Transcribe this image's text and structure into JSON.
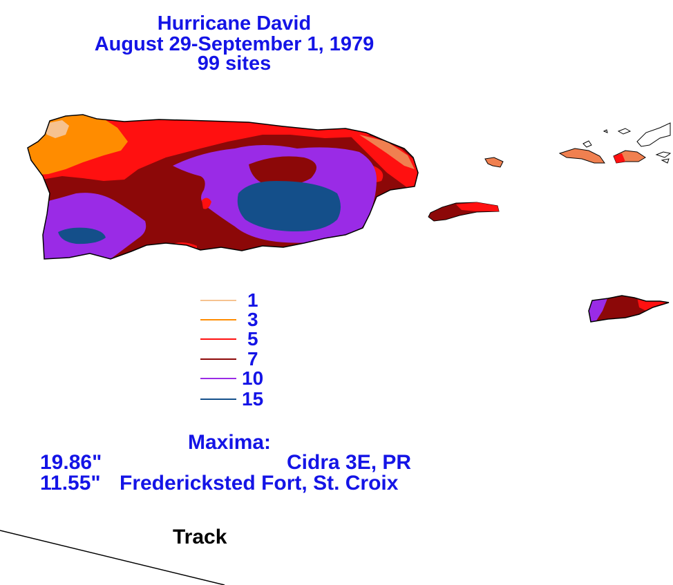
{
  "title": {
    "line1": "Hurricane David",
    "line2": "August 29-September 1, 1979",
    "line3": "99 sites"
  },
  "legend": [
    {
      "label": "1",
      "color": "#f6c290"
    },
    {
      "label": "3",
      "color": "#ff8c00"
    },
    {
      "label": "5",
      "color": "#ff1010"
    },
    {
      "label": "7",
      "color": "#8c0808"
    },
    {
      "label": "10",
      "color": "#9a2be6"
    },
    {
      "label": "15",
      "color": "#144f8a"
    }
  ],
  "maxima": {
    "heading": "Maxima:",
    "rows": [
      {
        "value": "19.86\"",
        "site": "Cidra 3E, PR"
      },
      {
        "value": "11.55\"",
        "site": "Fredericksted Fort, St. Croix"
      }
    ]
  },
  "track": {
    "label": "Track"
  }
}
